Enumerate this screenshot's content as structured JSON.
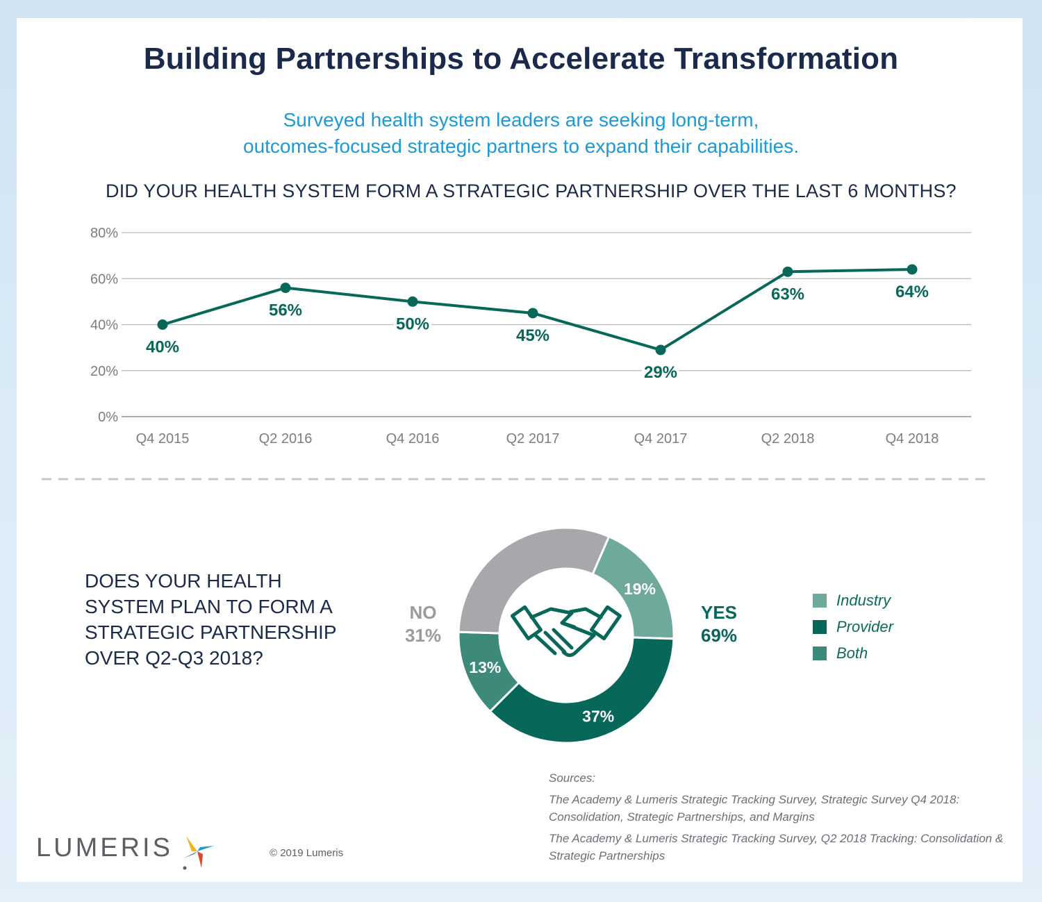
{
  "title": "Building Partnerships to Accelerate Transformation",
  "subtitle_line1": "Surveyed health system leaders are seeking long-term,",
  "subtitle_line2": "outcomes-focused strategic partners to expand their capabilities.",
  "colors": {
    "navy": "#1b2a4a",
    "blue": "#1b9ad6",
    "dark_green": "#07685a",
    "industry": "#6fa99b",
    "provider": "#07685a",
    "both": "#3d8a7b",
    "no": "#a7a8ab"
  },
  "chart_data": [
    {
      "type": "line",
      "title": "DID YOUR HEALTH SYSTEM FORM A STRATEGIC PARTNERSHIP OVER THE LAST 6 MONTHS?",
      "categories": [
        "Q4 2015",
        "Q2 2016",
        "Q4 2016",
        "Q2 2017",
        "Q4 2017",
        "Q2 2018",
        "Q4 2018"
      ],
      "series": [
        {
          "values": [
            40,
            56,
            50,
            45,
            29,
            63,
            64
          ],
          "labels": [
            "40%",
            "56%",
            "50%",
            "45%",
            "29%",
            "63%",
            "64%"
          ]
        }
      ],
      "yticks": [
        "0%",
        "20%",
        "40%",
        "60%",
        "80%"
      ],
      "ylim": [
        0,
        80
      ],
      "grid": true
    },
    {
      "type": "pie",
      "donut": true,
      "title": "DOES YOUR HEALTH SYSTEM PLAN TO FORM A STRATEGIC PARTNERSHIP OVER Q2-Q3 2018?",
      "title_lines": [
        "DOES YOUR HEALTH",
        "SYSTEM PLAN TO FORM A",
        "STRATEGIC PARTNERSHIP",
        "OVER Q2-Q3 2018?"
      ],
      "slices": [
        {
          "name": "Industry",
          "value": 19,
          "label": "19%"
        },
        {
          "name": "Provider",
          "value": 37,
          "label": "37%"
        },
        {
          "name": "Both",
          "value": 13,
          "label": "13%"
        },
        {
          "name": "No",
          "value": 31,
          "label": ""
        }
      ],
      "yes_label": "YES",
      "yes_value": "69%",
      "no_label": "NO",
      "no_value": "31%",
      "legend": [
        "Industry",
        "Provider",
        "Both"
      ],
      "legend_position": "right"
    }
  ],
  "sources": {
    "heading": "Sources:",
    "items": [
      "The Academy & Lumeris Strategic Tracking Survey, Strategic Survey Q4 2018: Consolidation, Strategic Partnerships, and Margins",
      "The Academy & Lumeris Strategic Tracking Survey, Q2 2018 Tracking: Consolidation & Strategic Partnerships"
    ]
  },
  "logo_text": "LUMERIS",
  "copyright": "© 2019 Lumeris",
  "icons": {
    "center": "handshake-icon",
    "logo": "lumeris-star-icon"
  }
}
